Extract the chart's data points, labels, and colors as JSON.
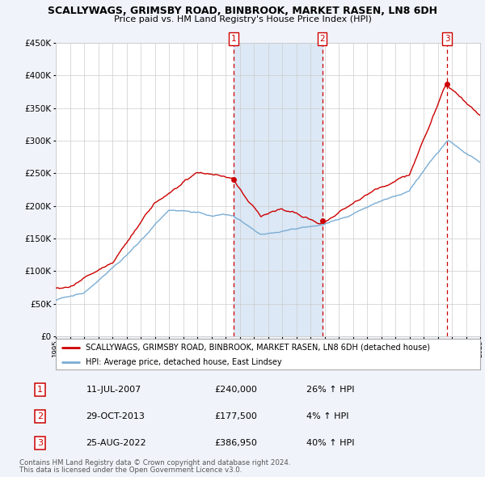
{
  "title": "SCALLYWAGS, GRIMSBY ROAD, BINBROOK, MARKET RASEN, LN8 6DH",
  "subtitle": "Price paid vs. HM Land Registry's House Price Index (HPI)",
  "legend_line1": "SCALLYWAGS, GRIMSBY ROAD, BINBROOK, MARKET RASEN, LN8 6DH (detached house)",
  "legend_line2": "HPI: Average price, detached house, East Lindsey",
  "transactions": [
    {
      "num": 1,
      "date": "11-JUL-2007",
      "price": "£240,000",
      "pct": "26%",
      "dir": "↑",
      "ref": "HPI",
      "year": 2007.542
    },
    {
      "num": 2,
      "date": "29-OCT-2013",
      "price": "£177,500",
      "pct": "4%",
      "dir": "↑",
      "ref": "HPI",
      "year": 2013.833
    },
    {
      "num": 3,
      "date": "25-AUG-2022",
      "price": "£386,950",
      "pct": "40%",
      "dir": "↑",
      "ref": "HPI",
      "year": 2022.646
    }
  ],
  "sale_prices": [
    240000,
    177500,
    386950
  ],
  "footer1": "Contains HM Land Registry data © Crown copyright and database right 2024.",
  "footer2": "This data is licensed under the Open Government Licence v3.0.",
  "ylim": [
    0,
    450000
  ],
  "yticks": [
    0,
    50000,
    100000,
    150000,
    200000,
    250000,
    300000,
    350000,
    400000,
    450000
  ],
  "bg_color": "#f0f4fa",
  "plot_bg": "#ffffff",
  "red_color": "#cc0000",
  "blue_color": "#7aadd4",
  "shade_color": "#dce8f5",
  "grid_color": "#cccccc",
  "xlim_start": 1995,
  "xlim_end": 2025
}
